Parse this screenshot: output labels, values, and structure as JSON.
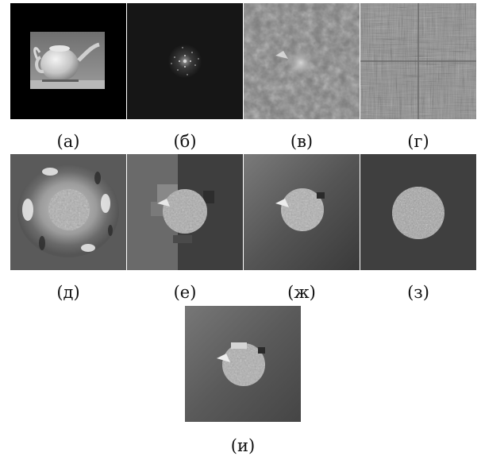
{
  "figure": {
    "panels": [
      {
        "id": "a",
        "caption": "(а)",
        "content": "teapot-original"
      },
      {
        "id": "b",
        "caption": "(б)",
        "content": "fourier-magnitude"
      },
      {
        "id": "v",
        "caption": "(в)",
        "content": "noisy-reconstruction"
      },
      {
        "id": "g",
        "caption": "(г)",
        "content": "block-noise"
      },
      {
        "id": "d",
        "caption": "(д)",
        "content": "blurred-reconstruction"
      },
      {
        "id": "e",
        "caption": "(е)",
        "content": "patchy-reconstruction"
      },
      {
        "id": "zh",
        "caption": "(ж)",
        "content": "smooth-reconstruction"
      },
      {
        "id": "z",
        "caption": "(з)",
        "content": "textured-disc"
      },
      {
        "id": "i",
        "caption": "(и)",
        "content": "final-reconstruction"
      }
    ]
  }
}
